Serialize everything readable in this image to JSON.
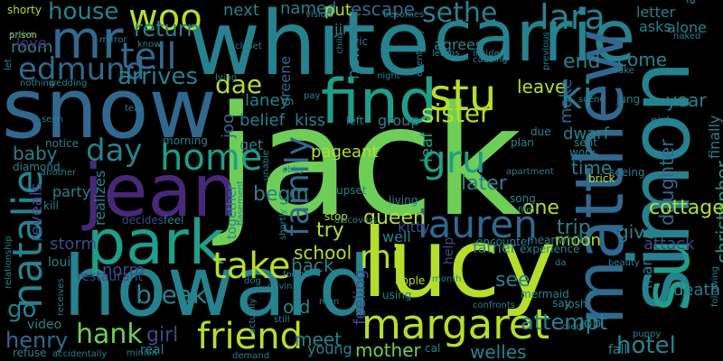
{
  "palette": {
    "background": "#000000",
    "lime": "#b5de2b",
    "green": "#6ece58",
    "teal": "#1f9e89",
    "teal_dark": "#26828e",
    "blue": "#31688e",
    "indigo": "#3e4a89",
    "purple": "#482878",
    "dark_purple": "#440154",
    "mint": "#35b779",
    "yellow": "#fde725"
  },
  "words": [
    {
      "text": "jack",
      "color": "green"
    },
    {
      "text": "white",
      "color": "teal_dark"
    },
    {
      "text": "carrie",
      "color": "teal_dark"
    },
    {
      "text": "snow",
      "color": "blue"
    },
    {
      "text": "lucy",
      "color": "lime"
    },
    {
      "text": "howard",
      "color": "teal_dark"
    },
    {
      "text": "jean",
      "color": "purple"
    },
    {
      "text": "simon",
      "color": "teal_dark"
    },
    {
      "text": "matthew",
      "color": "blue"
    },
    {
      "text": "find",
      "color": "teal"
    },
    {
      "text": "park",
      "color": "teal"
    },
    {
      "text": "su",
      "color": "teal"
    },
    {
      "text": "mr",
      "color": "blue"
    },
    {
      "text": "margaret",
      "color": "lime"
    },
    {
      "text": "friend",
      "color": "lime"
    },
    {
      "text": "natalie",
      "color": "teal_dark"
    },
    {
      "text": "family",
      "color": "blue"
    },
    {
      "text": "lauren",
      "color": "blue"
    },
    {
      "text": "stu",
      "color": "lime"
    },
    {
      "text": "lara",
      "color": "teal_dark"
    },
    {
      "text": "woo",
      "color": "lime"
    },
    {
      "text": "tell",
      "color": "blue"
    },
    {
      "text": "home",
      "color": "teal"
    },
    {
      "text": "take",
      "color": "lime"
    },
    {
      "text": "gru",
      "color": "teal"
    },
    {
      "text": "ki",
      "color": "teal_dark"
    },
    {
      "text": "edmund",
      "color": "blue"
    },
    {
      "text": "house",
      "color": "teal_dark"
    },
    {
      "text": "sethe",
      "color": "teal_dark"
    },
    {
      "text": "day",
      "color": "teal_dark"
    },
    {
      "text": "hank",
      "color": "green"
    },
    {
      "text": "break",
      "color": "teal_dark"
    },
    {
      "text": "sister",
      "color": "lime"
    },
    {
      "text": "return",
      "color": "teal_dark"
    },
    {
      "text": "arrives",
      "color": "teal_dark"
    },
    {
      "text": "mi",
      "color": "lime"
    },
    {
      "text": "dae",
      "color": "lime"
    },
    {
      "text": "go",
      "color": "teal_dark"
    },
    {
      "text": "hotel",
      "color": "teal_dark"
    },
    {
      "text": "baby",
      "color": "teal_dark"
    },
    {
      "text": "henry",
      "color": "blue"
    },
    {
      "text": "attempt",
      "color": "teal_dark"
    },
    {
      "text": "school",
      "color": "lime"
    },
    {
      "text": "queen",
      "color": "lime"
    },
    {
      "text": "later",
      "color": "teal_dark"
    },
    {
      "text": "try",
      "color": "lime"
    },
    {
      "text": "back",
      "color": "teal_dark"
    },
    {
      "text": "meet",
      "color": "teal_dark"
    },
    {
      "text": "begin",
      "color": "teal_dark"
    },
    {
      "text": "daughter",
      "color": "blue"
    },
    {
      "text": "christopher",
      "color": "teal"
    },
    {
      "text": "cottage",
      "color": "lime"
    },
    {
      "text": "welles",
      "color": "teal_dark"
    },
    {
      "text": "mother",
      "color": "green"
    },
    {
      "text": "girl",
      "color": "indigo"
    },
    {
      "text": "old",
      "color": "teal_dark"
    },
    {
      "text": "see",
      "color": "teal_dark"
    },
    {
      "text": "time",
      "color": "teal_dark"
    },
    {
      "text": "end",
      "color": "teal_dark"
    },
    {
      "text": "year",
      "color": "teal_dark"
    },
    {
      "text": "escape",
      "color": "blue"
    },
    {
      "text": "leave",
      "color": "lime"
    },
    {
      "text": "make",
      "color": "blue"
    },
    {
      "text": "dwarf",
      "color": "teal_dark"
    },
    {
      "text": "come",
      "color": "teal_dark"
    },
    {
      "text": "trip",
      "color": "teal_dark"
    },
    {
      "text": "one",
      "color": "lime"
    },
    {
      "text": "moon",
      "color": "lime"
    },
    {
      "text": "give",
      "color": "teal_dark"
    },
    {
      "text": "attack",
      "color": "indigo"
    },
    {
      "text": "death",
      "color": "teal_dark"
    },
    {
      "text": "leaf",
      "color": "teal"
    },
    {
      "text": "kiss",
      "color": "teal_dark"
    },
    {
      "text": "pageant",
      "color": "lime"
    },
    {
      "text": "room",
      "color": "teal_dark"
    },
    {
      "text": "love",
      "color": "purple"
    },
    {
      "text": "next",
      "color": "teal_dark"
    },
    {
      "text": "named",
      "color": "teal_dark"
    },
    {
      "text": "put",
      "color": "lime"
    },
    {
      "text": "jin",
      "color": "teal_dark"
    },
    {
      "text": "letter",
      "color": "teal_dark"
    },
    {
      "text": "asks",
      "color": "teal_dark"
    },
    {
      "text": "alone",
      "color": "teal_dark"
    },
    {
      "text": "away",
      "color": "teal_dark"
    },
    {
      "text": "agrees",
      "color": "teal_dark"
    },
    {
      "text": "laney",
      "color": "teal_dark"
    },
    {
      "text": "belief",
      "color": "teal_dark"
    },
    {
      "text": "new",
      "color": "teal_dark"
    },
    {
      "text": "joo",
      "color": "blue"
    },
    {
      "text": "greene",
      "color": "blue"
    },
    {
      "text": "left",
      "color": "teal_dark"
    },
    {
      "text": "group",
      "color": "teal_dark"
    },
    {
      "text": "storm",
      "color": "indigo"
    },
    {
      "text": "party",
      "color": "teal_dark"
    },
    {
      "text": "norm",
      "color": "indigo"
    },
    {
      "text": "reveals",
      "color": "indigo"
    },
    {
      "text": "realizes",
      "color": "teal_dark"
    },
    {
      "text": "together",
      "color": "teal_dark"
    },
    {
      "text": "kitty",
      "color": "indigo"
    },
    {
      "text": "well",
      "color": "teal_dark"
    },
    {
      "text": "father",
      "color": "teal_dark"
    },
    {
      "text": "feeling",
      "color": "indigo"
    },
    {
      "text": "help",
      "color": "indigo"
    },
    {
      "text": "man",
      "color": "teal_dark"
    },
    {
      "text": "finally",
      "color": "teal_dark"
    },
    {
      "text": "job",
      "color": "teal_dark"
    },
    {
      "text": "fall",
      "color": "teal_dark"
    },
    {
      "text": "young",
      "color": "teal_dark"
    },
    {
      "text": "real",
      "color": "teal_dark"
    },
    {
      "text": "louis",
      "color": "teal_dark"
    },
    {
      "text": "restaurant",
      "color": "indigo"
    },
    {
      "text": "video",
      "color": "teal_dark"
    },
    {
      "text": "shorty",
      "color": "lime"
    },
    {
      "text": "morning",
      "color": "teal_dark"
    },
    {
      "text": "notice",
      "color": "teal_dark"
    },
    {
      "text": "diamond",
      "color": "teal_dark"
    },
    {
      "text": "get",
      "color": "teal_dark"
    },
    {
      "text": "apple",
      "color": "lime"
    },
    {
      "text": "using",
      "color": "teal_dark"
    },
    {
      "text": "experience",
      "color": "teal_dark"
    },
    {
      "text": "mermaid",
      "color": "teal_dark"
    },
    {
      "text": "josh",
      "color": "teal_dark"
    },
    {
      "text": "cal",
      "color": "teal_dark"
    },
    {
      "text": "refuse",
      "color": "teal_dark"
    },
    {
      "text": "relationship",
      "color": "teal_dark"
    },
    {
      "text": "kill",
      "color": "teal_dark"
    },
    {
      "text": "decides",
      "color": "indigo"
    },
    {
      "text": "feel",
      "color": "teal_dark"
    },
    {
      "text": "stop",
      "color": "lime"
    },
    {
      "text": "upset",
      "color": "teal_dark"
    },
    {
      "text": "living",
      "color": "teal_dark"
    },
    {
      "text": "song",
      "color": "teal_dark"
    },
    {
      "text": "encounter",
      "color": "teal_dark"
    },
    {
      "text": "meanwhile",
      "color": "teal_dark"
    },
    {
      "text": "seeing",
      "color": "teal_dark"
    },
    {
      "text": "brick",
      "color": "lime"
    },
    {
      "text": "sent",
      "color": "teal_dark"
    },
    {
      "text": "work",
      "color": "teal_dark"
    },
    {
      "text": "plan",
      "color": "teal_dark"
    },
    {
      "text": "due",
      "color": "teal_dark"
    },
    {
      "text": "nick",
      "color": "teal_dark"
    },
    {
      "text": "jung",
      "color": "teal_dark"
    },
    {
      "text": "scene",
      "color": "teal_dark"
    },
    {
      "text": "wake",
      "color": "teal_dark"
    },
    {
      "text": "becomes",
      "color": "teal_dark"
    },
    {
      "text": "vision",
      "color": "teal_dark"
    },
    {
      "text": "vic",
      "color": "teal_dark"
    },
    {
      "text": "night",
      "color": "teal_dark"
    },
    {
      "text": "learns",
      "color": "teal_dark"
    },
    {
      "text": "causing",
      "color": "teal_dark"
    },
    {
      "text": "inside",
      "color": "teal_dark"
    },
    {
      "text": "previous",
      "color": "teal_dark"
    },
    {
      "text": "naked",
      "color": "teal_dark"
    },
    {
      "text": "closet",
      "color": "teal_dark"
    },
    {
      "text": "know",
      "color": "teal_dark"
    },
    {
      "text": "mirror",
      "color": "teal_dark"
    },
    {
      "text": "prison",
      "color": "lime"
    },
    {
      "text": "arrive",
      "color": "teal_dark"
    },
    {
      "text": "wedding",
      "color": "teal_dark"
    },
    {
      "text": "nothing",
      "color": "teal_dark"
    },
    {
      "text": "let",
      "color": "teal_dark"
    },
    {
      "text": "tear",
      "color": "teal_dark"
    },
    {
      "text": "seen",
      "color": "teal_dark"
    },
    {
      "text": "lying",
      "color": "teal_dark"
    },
    {
      "text": "pay",
      "color": "teal_dark"
    },
    {
      "text": "unable",
      "color": "teal_dark"
    },
    {
      "text": "abby",
      "color": "teal_dark"
    },
    {
      "text": "apartment",
      "color": "teal_dark"
    },
    {
      "text": "another",
      "color": "teal_dark"
    },
    {
      "text": "discovers",
      "color": "teal_dark"
    },
    {
      "text": "basement",
      "color": "teal_dark"
    },
    {
      "text": "shortly",
      "color": "teal_dark"
    },
    {
      "text": "former",
      "color": "teal_dark"
    },
    {
      "text": "gavin",
      "color": "teal_dark"
    },
    {
      "text": "dog",
      "color": "teal_dark"
    },
    {
      "text": "actually",
      "color": "teal_dark"
    },
    {
      "text": "still",
      "color": "teal_dark"
    },
    {
      "text": "men",
      "color": "teal_dark"
    },
    {
      "text": "month",
      "color": "teal_dark"
    },
    {
      "text": "da",
      "color": "teal_dark"
    },
    {
      "text": "say",
      "color": "teal_dark"
    },
    {
      "text": "confronts",
      "color": "teal_dark"
    },
    {
      "text": "died",
      "color": "teal_dark"
    },
    {
      "text": "puppy",
      "color": "teal_dark"
    },
    {
      "text": "beauty",
      "color": "teal_dark"
    },
    {
      "text": "jr",
      "color": "teal_dark"
    },
    {
      "text": "following",
      "color": "teal_dark"
    },
    {
      "text": "minion",
      "color": "teal_dark"
    },
    {
      "text": "accidentally",
      "color": "teal_dark"
    },
    {
      "text": "demand",
      "color": "teal_dark"
    },
    {
      "text": "film",
      "color": "teal_dark"
    },
    {
      "text": "child",
      "color": "teal_dark"
    },
    {
      "text": "eventually",
      "color": "teal_dark"
    },
    {
      "text": "receives",
      "color": "teal_dark"
    }
  ]
}
